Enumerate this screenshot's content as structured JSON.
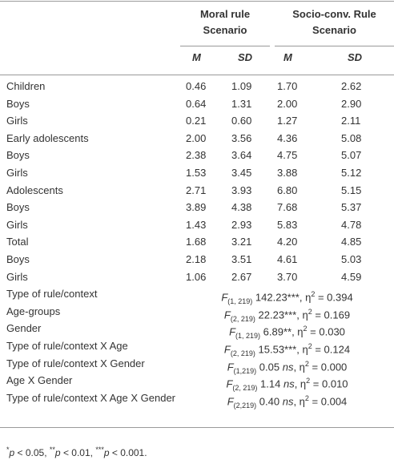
{
  "header": {
    "groups": [
      {
        "lines": [
          "Moral rule",
          "Scenario"
        ]
      },
      {
        "lines": [
          "Socio-conv. Rule",
          "Scenario"
        ]
      }
    ],
    "subheaders": [
      "M",
      "SD",
      "M",
      "SD"
    ]
  },
  "table": {
    "rows": [
      [
        "Children",
        "0.46",
        "1.09",
        "1.70",
        "2.62"
      ],
      [
        "Boys",
        "0.64",
        "1.31",
        "2.00",
        "2.90"
      ],
      [
        "Girls",
        "0.21",
        "0.60",
        "1.27",
        "2.11"
      ],
      [
        "Early adolescents",
        "2.00",
        "3.56",
        "4.36",
        "5.08"
      ],
      [
        "Boys",
        "2.38",
        "3.64",
        "4.75",
        "5.07"
      ],
      [
        "Girls",
        "1.53",
        "3.45",
        "3.88",
        "5.12"
      ],
      [
        "Adolescents",
        "2.71",
        "3.93",
        "6.80",
        "5.15"
      ],
      [
        "Boys",
        "3.89",
        "4.38",
        "7.68",
        "5.37"
      ],
      [
        "Girls",
        "1.43",
        "2.93",
        "5.83",
        "4.78"
      ],
      [
        "Total",
        "1.68",
        "3.21",
        "4.20",
        "4.85"
      ],
      [
        "Boys",
        "2.18",
        "3.51",
        "4.61",
        "5.03"
      ],
      [
        "Girls",
        "1.06",
        "2.67",
        "3.70",
        "4.59"
      ]
    ],
    "stats": [
      {
        "label": "Type of rule/context",
        "parts": [
          {
            "text": "F",
            "style": "i"
          },
          {
            "text": "(1, 219)",
            "style": "sub"
          },
          {
            "text": " 142.23***, η",
            "style": "n"
          },
          {
            "text": "2",
            "style": "sup"
          },
          {
            "text": " = 0.394",
            "style": "n"
          }
        ]
      },
      {
        "label": "Age-groups",
        "parts": [
          {
            "text": "F",
            "style": "i"
          },
          {
            "text": "(2, 219)",
            "style": "sub"
          },
          {
            "text": " 22.23***, η",
            "style": "n"
          },
          {
            "text": "2",
            "style": "sup"
          },
          {
            "text": " = 0.169",
            "style": "n"
          }
        ]
      },
      {
        "label": "Gender",
        "parts": [
          {
            "text": "F",
            "style": "i"
          },
          {
            "text": "(1, 219)",
            "style": "sub"
          },
          {
            "text": " 6.89**, η",
            "style": "n"
          },
          {
            "text": "2",
            "style": "sup"
          },
          {
            "text": " = 0.030",
            "style": "n"
          }
        ]
      },
      {
        "label": "Type of rule/context X Age",
        "parts": [
          {
            "text": "F",
            "style": "i"
          },
          {
            "text": "(2, 219)",
            "style": "sub"
          },
          {
            "text": " 15.53***, η",
            "style": "n"
          },
          {
            "text": "2",
            "style": "sup"
          },
          {
            "text": " = 0.124",
            "style": "n"
          }
        ]
      },
      {
        "label": "Type of rule/context X Gender",
        "parts": [
          {
            "text": "F",
            "style": "i"
          },
          {
            "text": "(1,219)",
            "style": "sub"
          },
          {
            "text": " 0.05 ",
            "style": "n"
          },
          {
            "text": "ns",
            "style": "i"
          },
          {
            "text": ", η",
            "style": "n"
          },
          {
            "text": "2",
            "style": "sup"
          },
          {
            "text": " = 0.000",
            "style": "n"
          }
        ]
      },
      {
        "label": "Age X Gender",
        "parts": [
          {
            "text": "F",
            "style": "i"
          },
          {
            "text": "(2, 219)",
            "style": "sub"
          },
          {
            "text": " 1.14 ",
            "style": "n"
          },
          {
            "text": "ns",
            "style": "i"
          },
          {
            "text": ", η",
            "style": "n"
          },
          {
            "text": "2",
            "style": "sup"
          },
          {
            "text": " = 0.010",
            "style": "n"
          }
        ]
      },
      {
        "label": "Type of rule/context X Age X Gender",
        "parts": [
          {
            "text": "F",
            "style": "i"
          },
          {
            "text": "(2,219)",
            "style": "sub"
          },
          {
            "text": " 0.40 ",
            "style": "n"
          },
          {
            "text": "ns",
            "style": "i"
          },
          {
            "text": ", η",
            "style": "n"
          },
          {
            "text": "2",
            "style": "sup"
          },
          {
            "text": " = 0.004",
            "style": "n"
          }
        ]
      }
    ]
  },
  "footnote": {
    "parts": [
      {
        "text": "*",
        "style": "sup"
      },
      {
        "text": "p",
        "style": "i"
      },
      {
        "text": " < 0.05, ",
        "style": "n"
      },
      {
        "text": "**",
        "style": "sup"
      },
      {
        "text": "p",
        "style": "i"
      },
      {
        "text": " < 0.01, ",
        "style": "n"
      },
      {
        "text": "***",
        "style": "sup"
      },
      {
        "text": "p",
        "style": "i"
      },
      {
        "text": " < 0.001.",
        "style": "n"
      }
    ]
  }
}
